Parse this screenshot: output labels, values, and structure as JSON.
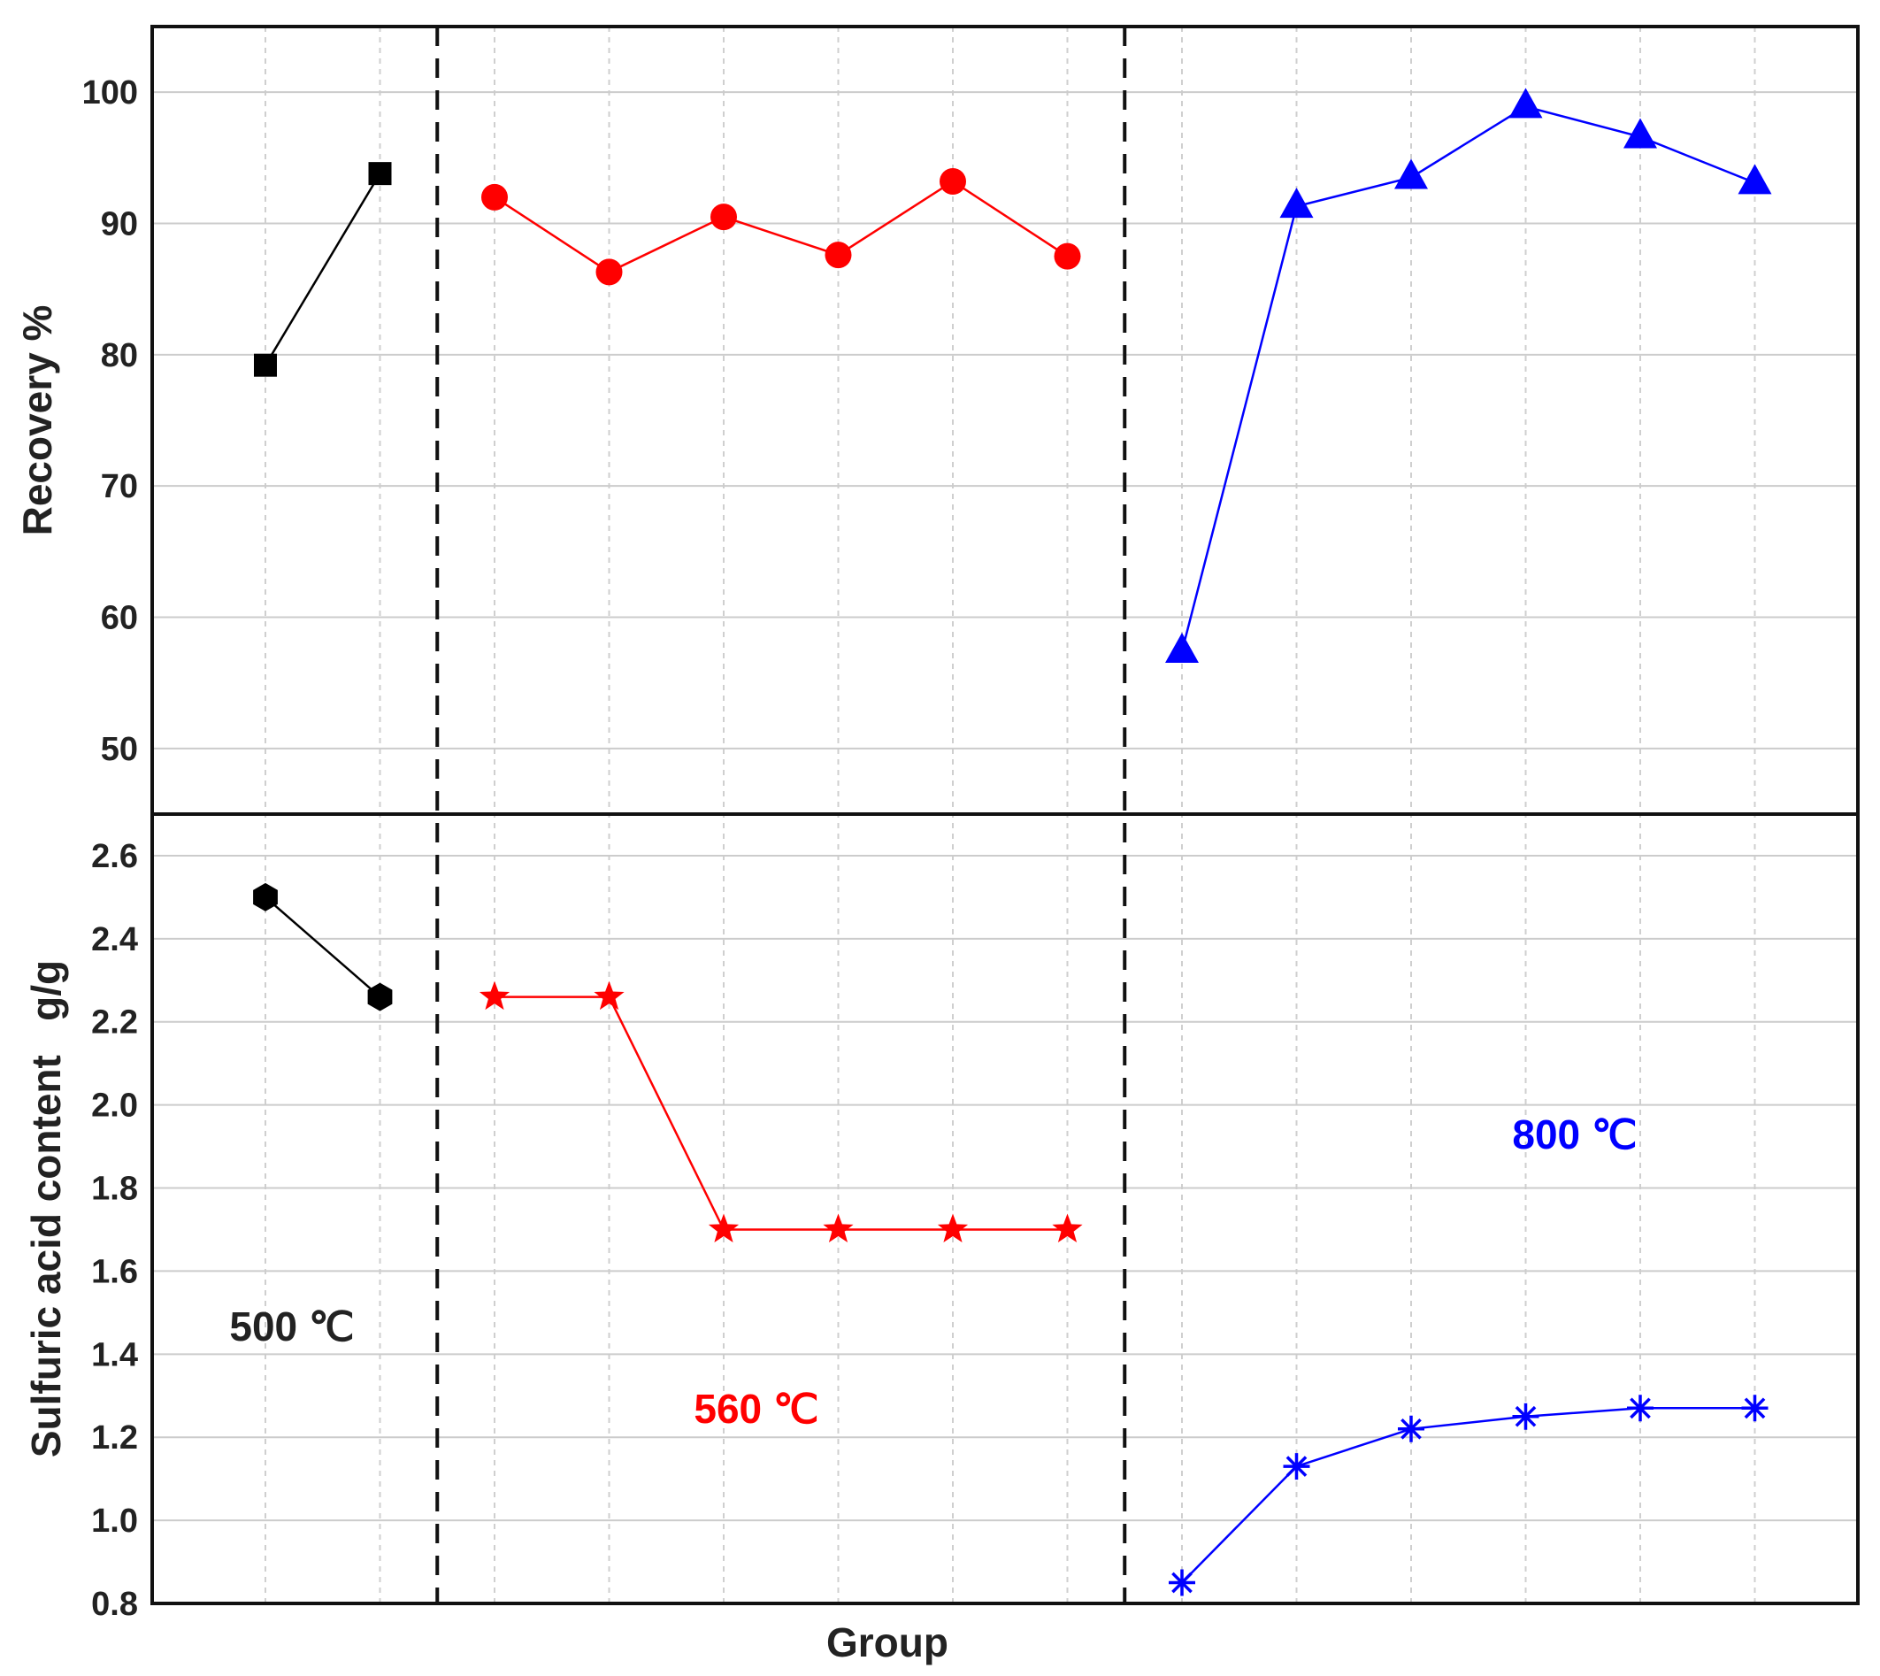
{
  "chart_data": {
    "type": "line",
    "xlabel": "Group",
    "groups": [
      {
        "label": "500 ℃",
        "color": "#000000",
        "count": 2
      },
      {
        "label": "560 ℃",
        "color": "#ff0000",
        "count": 6
      },
      {
        "label": "800 ℃",
        "color": "#0000ff",
        "count": 6
      }
    ],
    "panels": [
      {
        "id": "recovery",
        "ylabel": "Recovery %",
        "ylim": [
          45,
          105
        ],
        "yticks": [
          50,
          60,
          70,
          80,
          90,
          100
        ],
        "grid": true,
        "series": [
          {
            "group": 0,
            "marker": "square",
            "values": [
              79.2,
              93.8
            ]
          },
          {
            "group": 1,
            "marker": "circle",
            "values": [
              92.0,
              86.3,
              90.5,
              87.6,
              93.2,
              87.5
            ]
          },
          {
            "group": 2,
            "marker": "triangle",
            "values": [
              57.4,
              91.3,
              93.5,
              98.9,
              96.6,
              93.1
            ]
          }
        ]
      },
      {
        "id": "sulfuric",
        "ylabel": "Sulfuric acid content   g/g",
        "ylim": [
          0.8,
          2.7
        ],
        "yticks": [
          "0.8",
          "1.0",
          "1.2",
          "1.4",
          "1.6",
          "1.8",
          "2.0",
          "2.2",
          "2.4",
          "2.6"
        ],
        "grid": true,
        "series": [
          {
            "group": 0,
            "marker": "hexagon",
            "values": [
              2.5,
              2.26
            ]
          },
          {
            "group": 1,
            "marker": "star",
            "values": [
              2.26,
              2.26,
              1.7,
              1.7,
              1.7,
              1.7
            ]
          },
          {
            "group": 2,
            "marker": "asterisk",
            "values": [
              0.85,
              1.13,
              1.22,
              1.25,
              1.27,
              1.27
            ]
          }
        ]
      }
    ],
    "annotations": [
      {
        "text": "500 ℃",
        "group": 0
      },
      {
        "text": "560 ℃",
        "group": 1
      },
      {
        "text": "800 ℃",
        "group": 2
      }
    ]
  }
}
